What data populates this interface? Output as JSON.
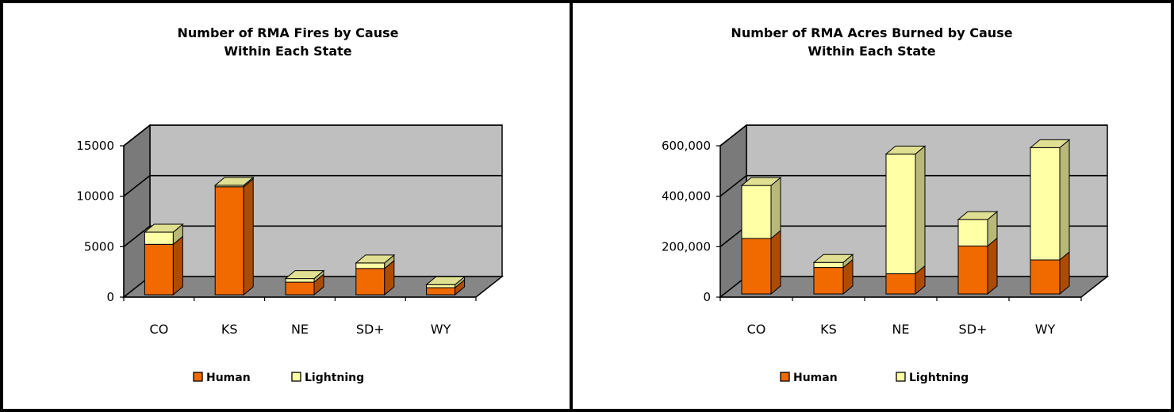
{
  "colors": {
    "human": "#f06a00",
    "lightning": "#ffffa6",
    "wall": "#bfbfbf",
    "floor": "#868686",
    "side_wall": "#7a7a7a"
  },
  "chart_data": [
    {
      "type": "bar",
      "stacked": true,
      "three_d": true,
      "title_lines": [
        "Number of RMA Fires by Cause",
        "Within Each State"
      ],
      "categories": [
        "CO",
        "KS",
        "NE",
        "SD+",
        "WY"
      ],
      "series": [
        {
          "name": "Human",
          "values": [
            5000,
            10700,
            1250,
            2600,
            700
          ]
        },
        {
          "name": "Lightning",
          "values": [
            1200,
            150,
            350,
            550,
            300
          ]
        }
      ],
      "ylim": [
        0,
        15000
      ],
      "yticks": [
        0,
        5000,
        10000,
        15000
      ],
      "ytick_labels": [
        "0",
        "5000",
        "10000",
        "15000"
      ],
      "grid": true,
      "legend_position": "bottom"
    },
    {
      "type": "bar",
      "stacked": true,
      "three_d": true,
      "title_lines": [
        "Number of RMA Acres Burned by Cause",
        "Within Each State"
      ],
      "categories": [
        "CO",
        "KS",
        "NE",
        "SD+",
        "WY"
      ],
      "series": [
        {
          "name": "Human",
          "values": [
            220000,
            105000,
            80000,
            190000,
            135000
          ]
        },
        {
          "name": "Lightning",
          "values": [
            210000,
            20000,
            475000,
            105000,
            445000
          ]
        }
      ],
      "ylim": [
        0,
        600000
      ],
      "yticks": [
        0,
        200000,
        400000,
        600000
      ],
      "ytick_labels": [
        "0",
        "200,000",
        "400,000",
        "600,000"
      ],
      "grid": true,
      "legend_position": "bottom"
    }
  ]
}
